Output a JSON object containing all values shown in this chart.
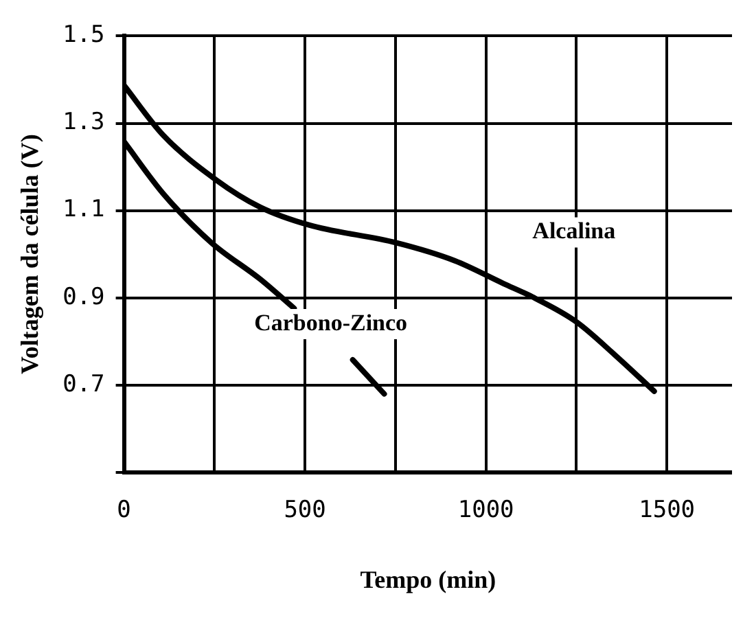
{
  "chart_data": {
    "type": "line",
    "xlabel": "Tempo (min)",
    "ylabel": "Voltagem da célula (V)",
    "xlim": [
      0,
      1680
    ],
    "xticks": [
      0,
      {
        "value": 250,
        "label": null
      },
      500,
      {
        "value": 750,
        "label": null
      },
      1000,
      {
        "value": 1250,
        "label": null
      },
      1500
    ],
    "ylim": [
      0.5,
      1.5
    ],
    "yticks": [
      {
        "value": 0.5,
        "label": null
      },
      0.7,
      0.9,
      1.1,
      1.3,
      1.5
    ],
    "grid": true,
    "legend": false,
    "marker": "none",
    "line_style": "solid",
    "series": [
      {
        "name": "Alcalina",
        "color": "#000000",
        "x": [
          0,
          108,
          255,
          376,
          511,
          753,
          914,
          1048,
          1129,
          1250,
          1358,
          1465
        ],
        "values": [
          1.387,
          1.273,
          1.17,
          1.108,
          1.067,
          1.026,
          0.985,
          0.933,
          0.902,
          0.845,
          0.768,
          0.686
        ]
      },
      {
        "name": "Carbono-Zinco",
        "color": "#000000",
        "x": [
          0,
          108,
          242,
          376,
          470,
          550,
          632,
          719
        ],
        "values": [
          1.258,
          1.139,
          1.026,
          0.943,
          0.876,
          null,
          0.758,
          0.68
        ]
      }
    ]
  }
}
